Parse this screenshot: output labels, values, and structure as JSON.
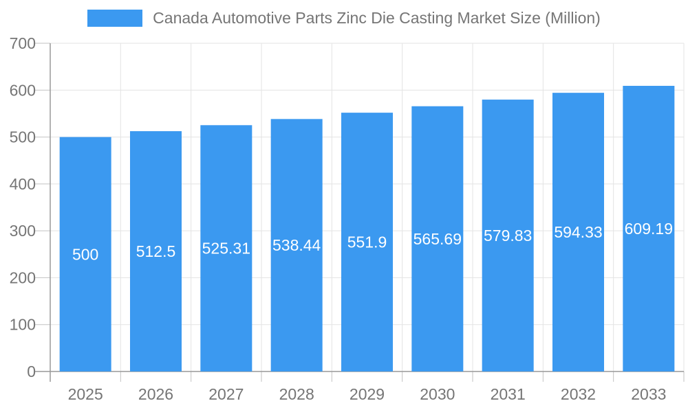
{
  "legend": {
    "label": "Canada Automotive Parts Zinc Die Casting Market Size (Million)"
  },
  "chart_data": {
    "type": "bar",
    "title": "Canada Automotive Parts Zinc Die Casting Market Size (Million)",
    "categories": [
      "2025",
      "2026",
      "2027",
      "2028",
      "2029",
      "2030",
      "2031",
      "2032",
      "2033"
    ],
    "values": [
      500,
      512.5,
      525.31,
      538.44,
      551.9,
      565.69,
      579.83,
      594.33,
      609.19
    ],
    "value_labels": [
      "500",
      "512.5",
      "525.31",
      "538.44",
      "551.9",
      "565.69",
      "579.83",
      "594.33",
      "609.19"
    ],
    "xlabel": "",
    "ylabel": "",
    "ylim": [
      0,
      700
    ],
    "ytick_step": 100,
    "ytick_labels": [
      "0",
      "100",
      "200",
      "300",
      "400",
      "500",
      "600",
      "700"
    ],
    "grid": true,
    "legend_position": "top",
    "colors": {
      "bar": "#3B99F0",
      "grid": "#e3e3e3",
      "axis": "#999999",
      "tick": "#c2c2c2",
      "text": "#757575",
      "value_label": "#ffffff",
      "background": "#ffffff"
    }
  }
}
